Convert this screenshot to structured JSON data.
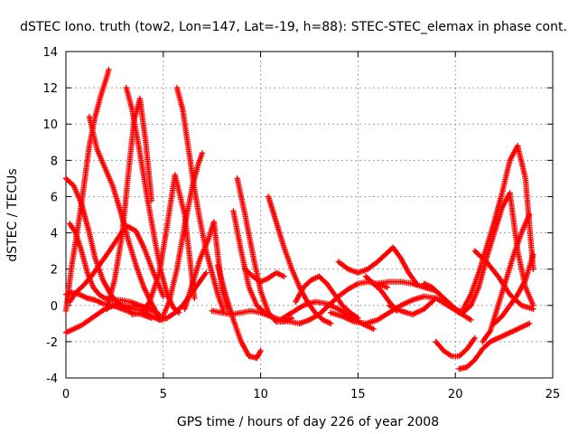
{
  "chart_data": {
    "type": "scatter",
    "title": "dSTEC Iono. truth (tow2, Lon=147, Lat=-19, h=88): STEC-STEC_elemax in phase cont.",
    "xlabel": "GPS time / hours of day 226 of year 2008",
    "ylabel": "dSTEC  / TECUs",
    "xlim": [
      0,
      25
    ],
    "ylim": [
      -4,
      14
    ],
    "x_ticks": [
      0,
      5,
      10,
      15,
      20,
      25
    ],
    "y_ticks": [
      -4,
      -2,
      0,
      2,
      4,
      6,
      8,
      10,
      12,
      14
    ],
    "x_tick_labels": [
      "0",
      "5",
      "10",
      "15",
      "20",
      "25"
    ],
    "y_tick_labels": [
      "-4",
      "-2",
      "0",
      "2",
      "4",
      "6",
      "8",
      "10",
      "12",
      "14"
    ],
    "grid": true,
    "marker": "+",
    "color": "#ff0000",
    "series": [
      {
        "x": [
          0.0,
          0.3,
          0.6,
          0.9,
          1.2,
          1.5,
          1.8,
          2.1,
          2.2
        ],
        "y": [
          -0.3,
          2.2,
          4.2,
          6.4,
          8.8,
          10.4,
          11.6,
          12.6,
          13.0
        ]
      },
      {
        "x": [
          0.0,
          0.4,
          0.8,
          1.2,
          1.5,
          1.9,
          2.3,
          2.6,
          3.0,
          3.5,
          4.0
        ],
        "y": [
          7.0,
          6.6,
          5.6,
          4.0,
          2.6,
          1.4,
          0.6,
          0.2,
          -0.1,
          -0.2,
          -0.3
        ]
      },
      {
        "x": [
          0.0,
          0.4,
          0.8,
          1.2,
          1.6,
          2.0,
          2.5,
          3.0,
          3.5,
          4.0,
          4.5
        ],
        "y": [
          -1.5,
          -1.3,
          -1.1,
          -0.8,
          -0.5,
          -0.2,
          0.0,
          0.0,
          -0.1,
          -0.1,
          -0.1
        ]
      },
      {
        "x": [
          0.2,
          0.5,
          0.8,
          1.1,
          1.4,
          1.7,
          2.0,
          2.4,
          2.8,
          3.3,
          3.8,
          4.3,
          4.8
        ],
        "y": [
          4.5,
          4.0,
          3.0,
          1.8,
          1.0,
          0.6,
          0.4,
          0.3,
          0.3,
          0.2,
          0.0,
          -0.2,
          -0.5
        ]
      },
      {
        "x": [
          0.0,
          0.3,
          0.7,
          1.1,
          1.5,
          1.9,
          2.4,
          2.9,
          3.4,
          3.9,
          4.4
        ],
        "y": [
          0.6,
          0.7,
          0.6,
          0.4,
          0.3,
          0.1,
          0.0,
          -0.2,
          -0.4,
          -0.5,
          -0.7
        ]
      },
      {
        "x": [
          0.2,
          0.5,
          0.9,
          1.3,
          1.7,
          2.1,
          2.6,
          3.1,
          3.6,
          4.0,
          4.5,
          5.0
        ],
        "y": [
          0.2,
          0.7,
          1.1,
          1.6,
          2.2,
          2.8,
          3.6,
          4.4,
          4.1,
          3.2,
          1.8,
          0.5
        ]
      },
      {
        "x": [
          1.2,
          1.6,
          2.0,
          2.4,
          2.8,
          3.2,
          3.6,
          4.0,
          4.4,
          4.8
        ],
        "y": [
          10.4,
          8.6,
          7.6,
          6.6,
          5.2,
          3.6,
          2.2,
          1.0,
          0.1,
          -0.7
        ]
      },
      {
        "x": [
          2.1,
          2.5,
          2.9,
          3.2,
          3.5,
          3.8,
          4.1,
          4.4
        ],
        "y": [
          -0.2,
          1.4,
          4.0,
          7.2,
          10.2,
          11.4,
          9.0,
          5.8
        ]
      },
      {
        "x": [
          3.1,
          3.4,
          3.8,
          4.2,
          4.6,
          4.9,
          5.2,
          5.5,
          5.8
        ],
        "y": [
          12.0,
          10.8,
          8.4,
          5.8,
          3.4,
          1.8,
          0.6,
          -0.1,
          -0.4
        ]
      },
      {
        "x": [
          4.0,
          4.4,
          4.8,
          5.2,
          5.6,
          6.0,
          6.4,
          6.8,
          7.2
        ],
        "y": [
          -0.3,
          -0.6,
          -0.8,
          -0.7,
          -0.4,
          0.0,
          0.6,
          1.2,
          1.8
        ]
      },
      {
        "x": [
          3.4,
          3.9,
          4.3,
          4.8,
          5.2,
          5.6,
          6.1,
          6.6
        ],
        "y": [
          -0.5,
          -0.4,
          0.2,
          1.8,
          4.4,
          7.2,
          5.0,
          0.4
        ]
      },
      {
        "x": [
          5.7,
          6.0,
          6.3,
          6.6,
          6.9,
          7.2,
          7.5,
          7.8,
          8.1
        ],
        "y": [
          12.0,
          10.8,
          8.6,
          6.4,
          4.6,
          3.0,
          1.8,
          0.6,
          -0.3
        ]
      },
      {
        "x": [
          4.9,
          5.3,
          5.7,
          6.1,
          6.5,
          6.8,
          7.0
        ],
        "y": [
          -0.8,
          0.2,
          2.0,
          4.4,
          6.6,
          7.8,
          8.4
        ]
      },
      {
        "x": [
          6.1,
          6.5,
          6.9,
          7.3,
          7.6,
          8.0,
          8.3
        ],
        "y": [
          -0.2,
          1.2,
          2.6,
          3.6,
          4.6,
          1.0,
          -0.2
        ]
      },
      {
        "x": [
          7.8,
          8.2,
          8.6,
          9.0,
          9.4,
          9.8,
          10.0
        ],
        "y": [
          2.2,
          0.6,
          -0.8,
          -2.0,
          -2.8,
          -2.9,
          -2.5
        ]
      },
      {
        "x": [
          8.6,
          9.0,
          9.4,
          9.8,
          10.2
        ],
        "y": [
          5.2,
          3.0,
          1.0,
          0.0,
          -0.4
        ]
      },
      {
        "x": [
          8.8,
          9.2,
          9.6,
          10.0,
          10.4,
          10.8,
          11.2,
          11.6
        ],
        "y": [
          7.0,
          5.0,
          2.8,
          0.8,
          -0.4,
          -0.9,
          -0.9,
          -0.7
        ]
      },
      {
        "x": [
          7.5,
          8.0,
          8.5,
          9.0,
          9.5,
          10.0,
          10.5,
          11.0,
          11.5,
          12.0
        ],
        "y": [
          -0.3,
          -0.4,
          -0.5,
          -0.4,
          -0.3,
          -0.4,
          -0.6,
          -0.8,
          -0.9,
          -1.0
        ]
      },
      {
        "x": [
          9.2,
          9.6,
          10.0,
          10.4,
          10.8,
          11.2
        ],
        "y": [
          2.0,
          1.6,
          1.3,
          1.5,
          1.8,
          1.6
        ]
      },
      {
        "x": [
          10.4,
          10.8,
          11.2,
          11.6,
          12.0,
          12.4,
          12.8,
          13.2,
          13.6
        ],
        "y": [
          6.0,
          4.6,
          3.2,
          2.0,
          1.0,
          0.2,
          -0.4,
          -0.8,
          -1.0
        ]
      },
      {
        "x": [
          11.0,
          11.6,
          12.2,
          12.8,
          13.4,
          14.0,
          14.6,
          15.2,
          15.8
        ],
        "y": [
          -0.8,
          -0.4,
          0.0,
          0.2,
          0.1,
          -0.2,
          -0.6,
          -1.0,
          -1.3
        ]
      },
      {
        "x": [
          11.8,
          12.2,
          12.6,
          13.0,
          13.4,
          13.8,
          14.2,
          14.6,
          15.0
        ],
        "y": [
          0.2,
          1.0,
          1.4,
          1.6,
          1.2,
          0.6,
          0.0,
          -0.4,
          -0.7
        ]
      },
      {
        "x": [
          12.0,
          12.5,
          13.0,
          13.5,
          14.0,
          14.5,
          15.0,
          15.5,
          16.0,
          16.5
        ],
        "y": [
          -1.0,
          -0.8,
          -0.5,
          0.0,
          0.5,
          0.9,
          1.2,
          1.3,
          1.2,
          1.0
        ]
      },
      {
        "x": [
          14.0,
          14.5,
          15.0,
          15.5,
          16.0,
          16.4,
          16.8,
          17.2,
          17.6,
          18.0
        ],
        "y": [
          2.4,
          2.0,
          1.8,
          2.0,
          2.4,
          2.8,
          3.2,
          2.6,
          1.8,
          1.2
        ]
      },
      {
        "x": [
          15.4,
          15.8,
          16.2,
          16.6,
          17.0
        ],
        "y": [
          1.6,
          1.2,
          0.8,
          0.2,
          -0.3
        ]
      },
      {
        "x": [
          13.6,
          14.2,
          14.8,
          15.4,
          16.0,
          16.6,
          17.2,
          17.8,
          18.4,
          19.0
        ],
        "y": [
          -0.4,
          -0.6,
          -0.9,
          -1.0,
          -0.8,
          -0.4,
          0.0,
          0.3,
          0.5,
          0.4
        ]
      },
      {
        "x": [
          16.0,
          16.6,
          17.2,
          17.8,
          18.4,
          19.0,
          19.6,
          20.2
        ],
        "y": [
          1.2,
          1.3,
          1.3,
          1.2,
          1.0,
          0.8,
          0.2,
          -0.4
        ]
      },
      {
        "x": [
          16.6,
          17.2,
          17.8,
          18.4,
          19.0,
          19.6,
          20.2,
          20.8
        ],
        "y": [
          0.0,
          -0.3,
          -0.5,
          -0.2,
          0.4,
          0.0,
          -0.4,
          -0.8
        ]
      },
      {
        "x": [
          18.4,
          18.8,
          19.2,
          19.6,
          20.0,
          20.4,
          20.8
        ],
        "y": [
          1.2,
          1.0,
          0.6,
          0.2,
          -0.2,
          -0.4,
          0.0
        ]
      },
      {
        "x": [
          19.0,
          19.4,
          19.8,
          20.2,
          20.6,
          21.0
        ],
        "y": [
          -2.0,
          -2.5,
          -2.8,
          -2.8,
          -2.4,
          -1.8
        ]
      },
      {
        "x": [
          20.2,
          20.6,
          21.0,
          21.4,
          21.8,
          22.2,
          22.6,
          23.0,
          23.4,
          23.8
        ],
        "y": [
          -3.5,
          -3.4,
          -3.0,
          -2.4,
          -2.0,
          -1.8,
          -1.6,
          -1.4,
          -1.2,
          -1.0
        ]
      },
      {
        "x": [
          20.4,
          20.8,
          21.2,
          21.6,
          22.0,
          22.4,
          22.8,
          23.2,
          23.6,
          24.0
        ],
        "y": [
          -0.2,
          0.6,
          1.8,
          3.2,
          4.6,
          6.2,
          8.0,
          8.8,
          7.0,
          2.0
        ]
      },
      {
        "x": [
          20.8,
          21.2,
          21.6,
          22.0,
          22.4,
          22.8,
          23.2,
          23.6,
          24.0
        ],
        "y": [
          0.0,
          1.0,
          2.6,
          4.0,
          5.4,
          6.2,
          3.0,
          1.0,
          0.0
        ]
      },
      {
        "x": [
          21.4,
          21.8,
          22.2,
          22.6,
          23.0,
          23.4,
          23.8
        ],
        "y": [
          -2.0,
          -1.4,
          0.0,
          1.4,
          2.8,
          4.0,
          5.0
        ]
      },
      {
        "x": [
          21.0,
          21.6,
          22.2,
          22.8,
          23.4,
          24.0
        ],
        "y": [
          3.0,
          2.4,
          1.6,
          0.6,
          0.0,
          -0.2
        ]
      },
      {
        "x": [
          22.0,
          22.4,
          22.8,
          23.2,
          23.6,
          24.0
        ],
        "y": [
          -1.0,
          -0.6,
          0.0,
          0.6,
          1.4,
          2.8
        ]
      }
    ]
  }
}
